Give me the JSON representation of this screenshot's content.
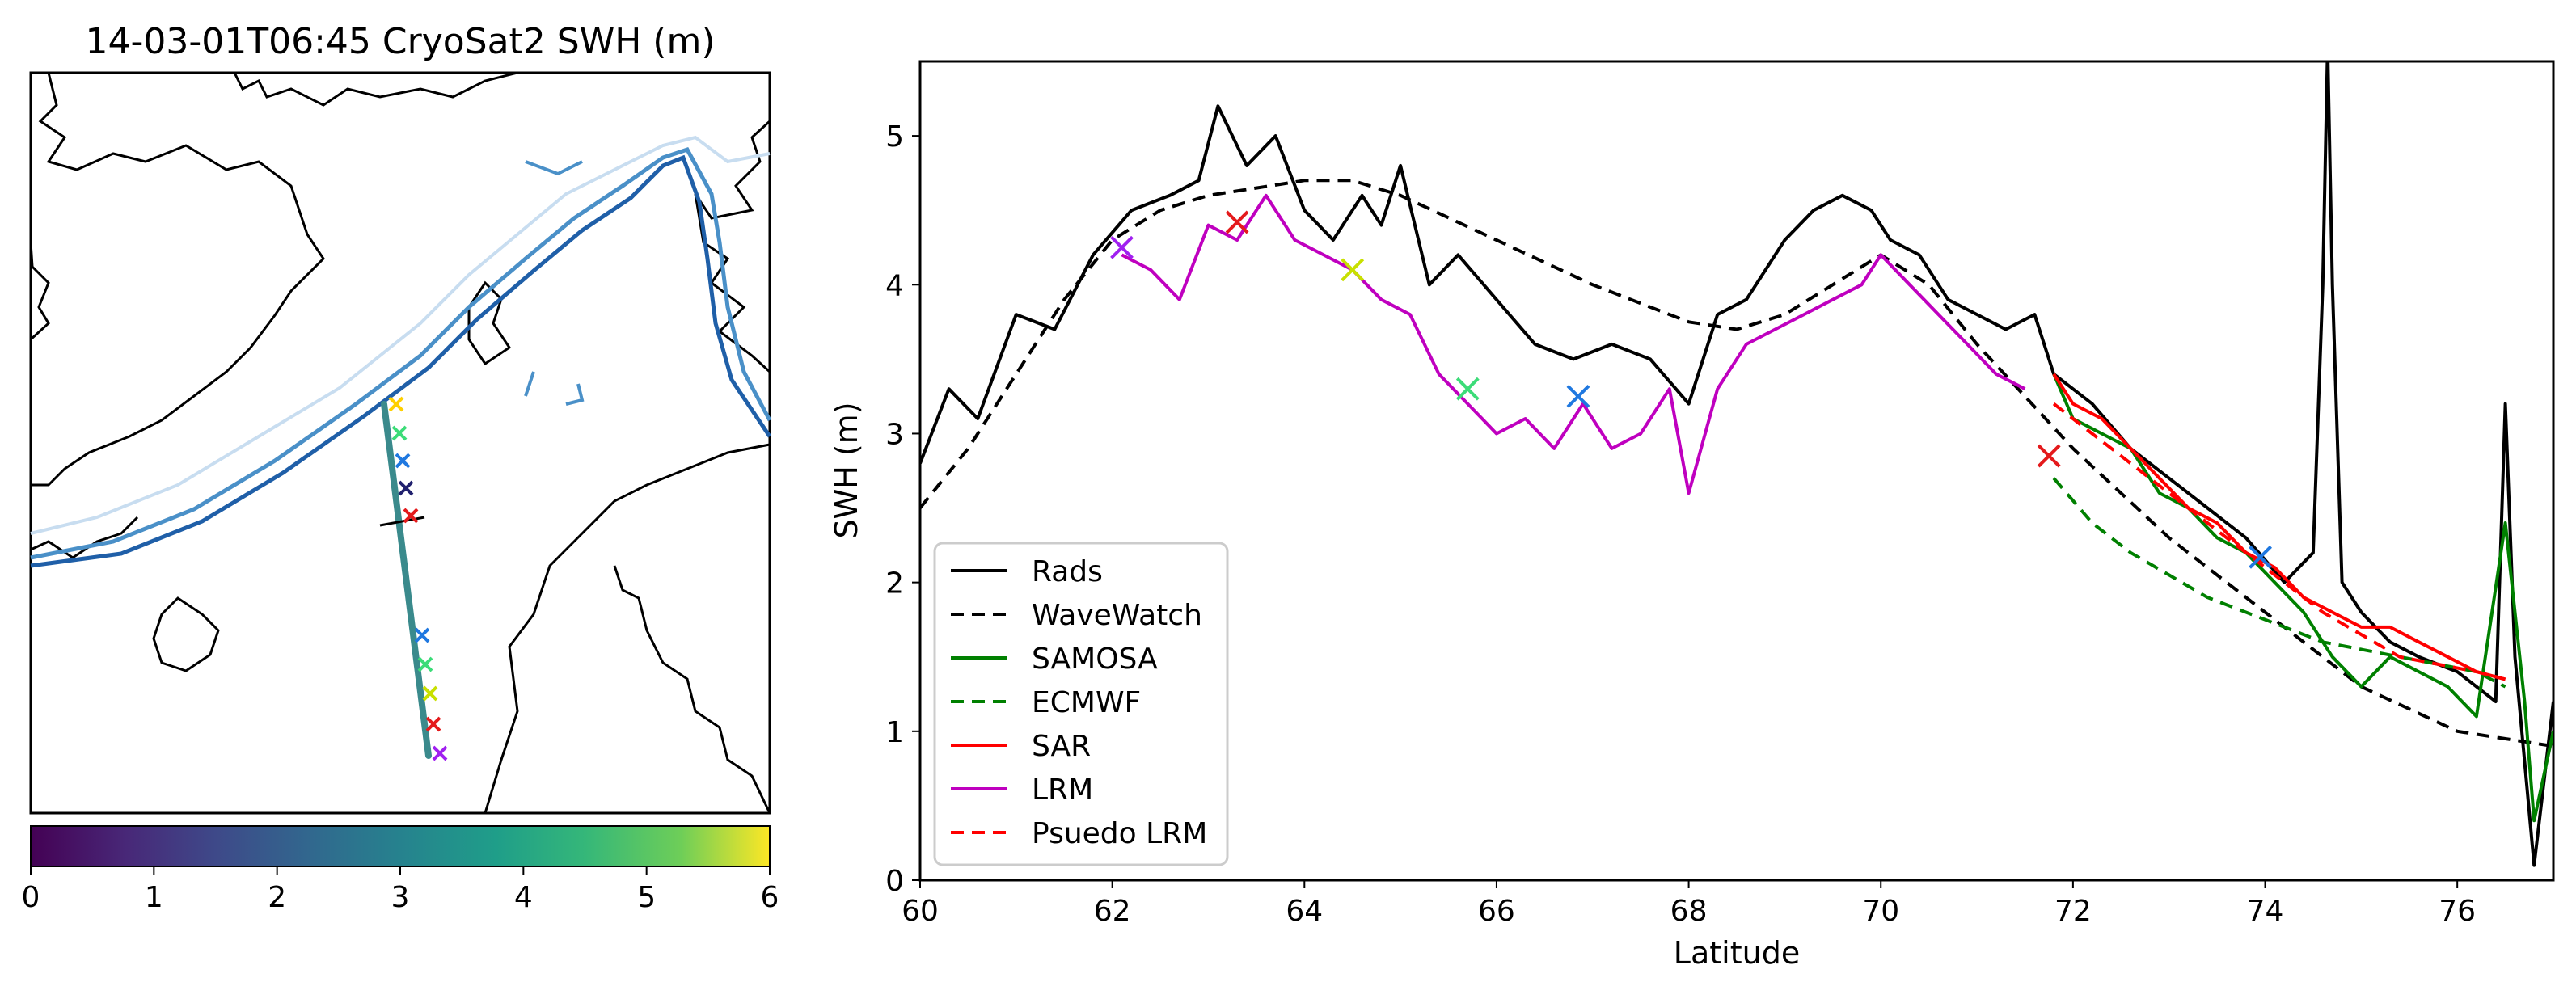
{
  "colors": {
    "rads": "#000000",
    "wavewatch": "#000000",
    "samosa": "#008000",
    "ecmwf": "#008000",
    "sar": "#ff0000",
    "lrm": "#bf00bf",
    "pseudo_lrm": "#ff0000",
    "coast": "#000000",
    "contour_dark": "#1f5fa8",
    "contour_mid": "#4a90c8",
    "contour_light": "#c8ddf0"
  },
  "map_panel": {
    "title": "14-03-01T06:45 CryoSat2 SWH (m)",
    "colorbar": {
      "ticks": [
        "0",
        "1",
        "2",
        "3",
        "4",
        "5",
        "6"
      ],
      "range": [
        0,
        6
      ],
      "colormap": "viridis"
    }
  },
  "chart_data": {
    "type": "line",
    "title": "",
    "xlabel": "Latitude",
    "ylabel": "SWH (m)",
    "xlim": [
      60,
      77
    ],
    "ylim": [
      0,
      5.5
    ],
    "xticks": [
      "60",
      "62",
      "64",
      "66",
      "68",
      "70",
      "72",
      "74",
      "76"
    ],
    "yticks": [
      "0",
      "1",
      "2",
      "3",
      "4",
      "5"
    ],
    "legend_position": "lower-left",
    "series": [
      {
        "name": "Rads",
        "style": "solid",
        "color_key": "rads",
        "x": [
          60,
          60.3,
          60.6,
          61,
          61.4,
          61.8,
          62.2,
          62.6,
          62.9,
          63.1,
          63.4,
          63.7,
          64,
          64.3,
          64.6,
          64.8,
          65,
          65.3,
          65.6,
          66,
          66.4,
          66.8,
          67.2,
          67.6,
          68,
          68.3,
          68.6,
          69,
          69.3,
          69.6,
          69.9,
          70.1,
          70.4,
          70.7,
          71,
          71.3,
          71.6,
          71.8,
          72.2,
          72.6,
          73,
          73.4,
          73.8,
          74.2,
          74.5,
          74.6,
          74.65,
          74.7,
          74.8,
          75,
          75.3,
          75.6,
          76,
          76.2,
          76.4,
          76.5,
          76.6,
          76.7,
          76.8,
          77
        ],
        "y": [
          2.8,
          3.3,
          3.1,
          3.8,
          3.7,
          4.2,
          4.5,
          4.6,
          4.7,
          5.2,
          4.8,
          5.0,
          4.5,
          4.3,
          4.6,
          4.4,
          4.8,
          4.0,
          4.2,
          3.9,
          3.6,
          3.5,
          3.6,
          3.5,
          3.2,
          3.8,
          3.9,
          4.3,
          4.5,
          4.6,
          4.5,
          4.3,
          4.2,
          3.9,
          3.8,
          3.7,
          3.8,
          3.4,
          3.2,
          2.9,
          2.7,
          2.5,
          2.3,
          2.0,
          2.2,
          4.0,
          5.6,
          4.0,
          2.0,
          1.8,
          1.6,
          1.5,
          1.4,
          1.3,
          1.2,
          3.2,
          1.5,
          0.8,
          0.1,
          1.2
        ]
      },
      {
        "name": "WaveWatch",
        "style": "dashed",
        "color_key": "wavewatch",
        "x": [
          60,
          60.5,
          61,
          61.5,
          62,
          62.5,
          63,
          63.5,
          64,
          64.5,
          65,
          66,
          67,
          68,
          68.5,
          69,
          69.5,
          70,
          70.5,
          71,
          72,
          73,
          74,
          75,
          76,
          77
        ],
        "y": [
          2.5,
          2.9,
          3.4,
          3.9,
          4.3,
          4.5,
          4.6,
          4.65,
          4.7,
          4.7,
          4.6,
          4.3,
          4.0,
          3.75,
          3.7,
          3.8,
          4.0,
          4.2,
          4.0,
          3.6,
          2.9,
          2.3,
          1.8,
          1.3,
          1.0,
          0.9
        ]
      },
      {
        "name": "SAMOSA",
        "style": "solid",
        "color_key": "samosa",
        "x": [
          71.8,
          72.0,
          72.3,
          72.6,
          72.9,
          73.2,
          73.5,
          73.8,
          74.1,
          74.4,
          74.7,
          75.0,
          75.3,
          75.6,
          75.9,
          76.2,
          76.5,
          76.6,
          76.7,
          76.8,
          77.0
        ],
        "y": [
          3.4,
          3.1,
          3.0,
          2.9,
          2.6,
          2.5,
          2.3,
          2.2,
          2.0,
          1.8,
          1.5,
          1.3,
          1.5,
          1.4,
          1.3,
          1.1,
          2.4,
          1.8,
          1.2,
          0.4,
          1.0
        ]
      },
      {
        "name": "ECMWF",
        "style": "dashed",
        "color_key": "ecmwf",
        "x": [
          71.8,
          72.2,
          72.6,
          73.0,
          73.4,
          73.8,
          74.2,
          74.6,
          75.0,
          75.4,
          75.8,
          76.2,
          76.5
        ],
        "y": [
          2.7,
          2.4,
          2.2,
          2.05,
          1.9,
          1.8,
          1.7,
          1.6,
          1.55,
          1.5,
          1.45,
          1.4,
          1.3
        ]
      },
      {
        "name": "SAR",
        "style": "solid",
        "color_key": "sar",
        "x": [
          71.8,
          72.0,
          72.3,
          72.6,
          72.9,
          73.2,
          73.5,
          73.8,
          74.1,
          74.4,
          74.7,
          75.0,
          75.3,
          75.6,
          75.9,
          76.2,
          76.5
        ],
        "y": [
          3.4,
          3.2,
          3.1,
          2.9,
          2.7,
          2.5,
          2.4,
          2.2,
          2.1,
          1.9,
          1.8,
          1.7,
          1.7,
          1.6,
          1.5,
          1.4,
          1.35
        ]
      },
      {
        "name": "LRM",
        "style": "solid",
        "color_key": "lrm",
        "x": [
          62.1,
          62.4,
          62.7,
          63.0,
          63.3,
          63.6,
          63.9,
          64.2,
          64.5,
          64.8,
          65.1,
          65.4,
          65.7,
          66.0,
          66.3,
          66.6,
          66.9,
          67.2,
          67.5,
          67.8,
          68.0,
          68.3,
          68.6,
          68.9,
          69.2,
          69.5,
          69.8,
          70.0,
          70.3,
          70.6,
          70.9,
          71.2,
          71.5
        ],
        "y": [
          4.2,
          4.1,
          3.9,
          4.4,
          4.3,
          4.6,
          4.3,
          4.2,
          4.1,
          3.9,
          3.8,
          3.4,
          3.2,
          3.0,
          3.1,
          2.9,
          3.2,
          2.9,
          3.0,
          3.3,
          2.6,
          3.3,
          3.6,
          3.7,
          3.8,
          3.9,
          4.0,
          4.2,
          4.0,
          3.8,
          3.6,
          3.4,
          3.3
        ]
      },
      {
        "name": "Psuedo LRM",
        "style": "dashed",
        "color_key": "pseudo_lrm",
        "x": [
          71.8,
          72.2,
          72.6,
          73.0,
          73.4,
          73.8,
          74.2,
          74.6,
          75.0,
          75.4,
          75.8,
          76.2,
          76.5
        ],
        "y": [
          3.2,
          3.0,
          2.8,
          2.6,
          2.4,
          2.2,
          2.0,
          1.8,
          1.65,
          1.5,
          1.45,
          1.4,
          1.35
        ]
      }
    ],
    "markers": [
      {
        "x": 62.1,
        "y": 4.25,
        "color": "#a020f0"
      },
      {
        "x": 63.3,
        "y": 4.42,
        "color": "#e41a1c"
      },
      {
        "x": 64.5,
        "y": 4.1,
        "color": "#c8e000"
      },
      {
        "x": 65.7,
        "y": 3.3,
        "color": "#3cdc78"
      },
      {
        "x": 66.85,
        "y": 3.25,
        "color": "#1f78e0"
      },
      {
        "x": 71.75,
        "y": 2.85,
        "color": "#e41a1c"
      },
      {
        "x": 73.95,
        "y": 2.17,
        "color": "#1f78e0"
      }
    ]
  }
}
